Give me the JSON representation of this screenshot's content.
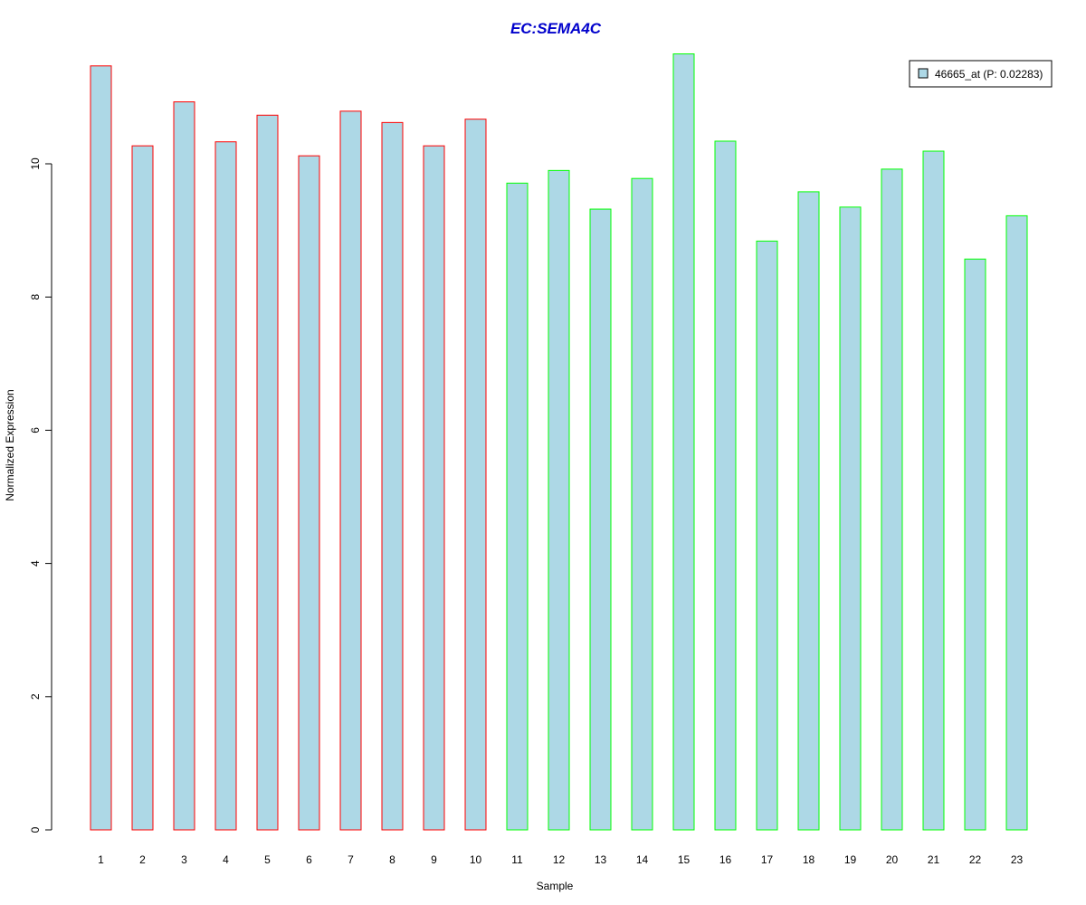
{
  "chart_data": {
    "type": "bar",
    "title": "EC:SEMA4C",
    "xlabel": "Sample",
    "ylabel": "Normalized Expression",
    "categories": [
      "1",
      "2",
      "3",
      "4",
      "5",
      "6",
      "7",
      "8",
      "9",
      "10",
      "11",
      "12",
      "13",
      "14",
      "15",
      "16",
      "17",
      "18",
      "19",
      "20",
      "21",
      "22",
      "23"
    ],
    "series": [
      {
        "name": "46665_at (P: 0.02283)",
        "values": [
          11.47,
          10.27,
          10.93,
          10.33,
          10.73,
          10.12,
          10.79,
          10.62,
          10.27,
          10.67,
          9.71,
          9.9,
          9.32,
          9.78,
          11.65,
          10.34,
          8.84,
          9.58,
          9.35,
          9.92,
          10.19,
          8.57,
          9.22
        ]
      }
    ],
    "group_border_colors": [
      "#ff0000",
      "#ff0000",
      "#ff0000",
      "#ff0000",
      "#ff0000",
      "#ff0000",
      "#ff0000",
      "#ff0000",
      "#ff0000",
      "#ff0000",
      "#00ff00",
      "#00ff00",
      "#00ff00",
      "#00ff00",
      "#00ff00",
      "#00ff00",
      "#00ff00",
      "#00ff00",
      "#00ff00",
      "#00ff00",
      "#00ff00",
      "#00ff00",
      "#00ff00"
    ],
    "bar_fill": "#add8e6",
    "title_color": "#0000cc",
    "ylim": [
      0,
      11.65
    ],
    "yticks": [
      0,
      2,
      4,
      6,
      8,
      10
    ],
    "grid": false,
    "legend_position": "top-right"
  }
}
